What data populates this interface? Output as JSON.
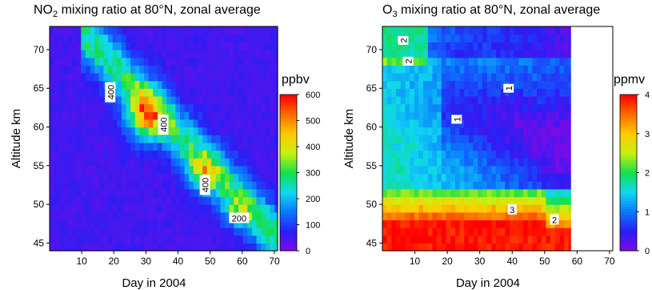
{
  "chart_data": [
    {
      "type": "heatmap",
      "title_main": "NO",
      "title_sub": "2",
      "title_rest": " mixing ratio at 80°N, zonal average",
      "xlabel": "Day in 2004",
      "ylabel": "Altitude km",
      "xlim": [
        0,
        71
      ],
      "ylim": [
        44,
        73
      ],
      "x_ticks": [
        10,
        20,
        30,
        40,
        50,
        60,
        70
      ],
      "y_ticks": [
        45,
        50,
        55,
        60,
        65,
        70
      ],
      "colorbar": {
        "label": "ppbv",
        "range": [
          0,
          600
        ],
        "ticks": [
          0,
          100,
          200,
          300,
          400,
          500,
          600
        ],
        "colors": [
          "#7d0be6",
          "#2a1ef5",
          "#0a78ff",
          "#10d8f0",
          "#12e04a",
          "#c8ef10",
          "#ffcc00",
          "#ff6a00",
          "#ff0000"
        ]
      },
      "background_value": 40,
      "features": [
        {
          "kind": "ridge",
          "x_start": 13,
          "x_end": 68,
          "alt_start": 71,
          "alt_end": 47,
          "peak": 500,
          "width": 3.6
        },
        {
          "kind": "blob",
          "x": 30,
          "alt": 61.5,
          "peak": 580,
          "sx": 6,
          "sy": 3
        },
        {
          "kind": "blob",
          "x": 48,
          "alt": 54,
          "peak": 380,
          "sx": 5,
          "sy": 2.5
        },
        {
          "kind": "blob",
          "x": 59,
          "alt": 49.5,
          "peak": 230,
          "sx": 5,
          "sy": 2
        }
      ],
      "contour_labels": [
        {
          "text": "400",
          "x": 19,
          "alt": 64.5,
          "rotate": -90
        },
        {
          "text": "400",
          "x": 35.5,
          "alt": 60.3,
          "rotate": -90
        },
        {
          "text": "400",
          "x": 48.5,
          "alt": 52.5,
          "rotate": -90
        },
        {
          "text": "200",
          "x": 59,
          "alt": 48.2,
          "rotate": 0
        }
      ]
    },
    {
      "type": "heatmap",
      "title_main": "O",
      "title_sub": "3",
      "title_rest": " mixing ratio at 80°N, zonal average",
      "xlabel": "Day in 2004",
      "ylabel": "Altitude km",
      "xlim": [
        0,
        71
      ],
      "ylim": [
        44,
        73
      ],
      "data_x_max": 58,
      "x_ticks": [
        10,
        20,
        30,
        40,
        50,
        60,
        70
      ],
      "y_ticks": [
        45,
        50,
        55,
        60,
        65,
        70
      ],
      "colorbar": {
        "label": "ppmv",
        "range": [
          0,
          4
        ],
        "ticks": [
          0,
          1,
          2,
          3,
          4
        ],
        "colors": [
          "#7d0be6",
          "#2a1ef5",
          "#0a78ff",
          "#10d8f0",
          "#12e04a",
          "#c8ef10",
          "#ffcc00",
          "#ff6a00",
          "#ff0000"
        ]
      },
      "contour_labels": [
        {
          "text": "2",
          "x": 6.5,
          "alt": 71.2,
          "rotate": -90
        },
        {
          "text": "2",
          "x": 8,
          "alt": 68.5,
          "rotate": -90
        },
        {
          "text": "1",
          "x": 39,
          "alt": 65,
          "rotate": -90
        },
        {
          "text": "1",
          "x": 23,
          "alt": 61,
          "rotate": -90
        },
        {
          "text": "3",
          "x": 40,
          "alt": 49.3,
          "rotate": 0
        },
        {
          "text": "2",
          "x": 53,
          "alt": 48,
          "rotate": 0
        }
      ]
    }
  ]
}
